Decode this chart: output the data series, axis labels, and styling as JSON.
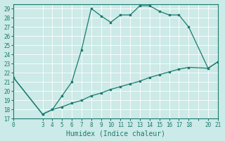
{
  "xlabel": "Humidex (Indice chaleur)",
  "bg_color": "#cceae7",
  "grid_color": "#ffffff",
  "line_color": "#1a7a6e",
  "xlim": [
    0,
    21
  ],
  "ylim": [
    17,
    29.5
  ],
  "xtick_labels": [
    "0",
    "3",
    "4",
    "5",
    "6",
    "7",
    "8",
    "9",
    "10",
    "11",
    "12",
    "13",
    "14",
    "15",
    "16",
    "17",
    "18",
    "",
    "20",
    "21"
  ],
  "xtick_pos": [
    0,
    3,
    4,
    5,
    6,
    7,
    8,
    9,
    10,
    11,
    12,
    13,
    14,
    15,
    16,
    17,
    18,
    19,
    20,
    21
  ],
  "ytick_labels": [
    "17",
    "18",
    "19",
    "20",
    "21",
    "22",
    "23",
    "24",
    "25",
    "26",
    "27",
    "28",
    "29"
  ],
  "ytick_pos": [
    17,
    18,
    19,
    20,
    21,
    22,
    23,
    24,
    25,
    26,
    27,
    28,
    29
  ],
  "curve_upper_x": [
    0,
    3,
    4,
    5,
    6,
    7,
    8,
    9,
    10,
    11,
    12,
    13,
    14,
    15,
    16,
    17,
    18,
    20,
    21
  ],
  "curve_upper_y": [
    21.5,
    17.5,
    18.0,
    19.5,
    21.0,
    24.5,
    29.0,
    28.2,
    27.5,
    28.3,
    28.3,
    29.3,
    29.3,
    28.7,
    28.3,
    28.3,
    27.0,
    22.5,
    23.2
  ],
  "curve_lower_x": [
    0,
    3,
    4,
    5,
    6,
    7,
    8,
    9,
    10,
    11,
    12,
    13,
    14,
    15,
    16,
    17,
    18,
    20,
    21
  ],
  "curve_lower_y": [
    21.5,
    17.5,
    18.0,
    18.3,
    18.7,
    19.0,
    19.5,
    19.8,
    20.2,
    20.5,
    20.8,
    21.1,
    21.5,
    21.8,
    22.1,
    22.4,
    22.6,
    22.5,
    23.2
  ]
}
